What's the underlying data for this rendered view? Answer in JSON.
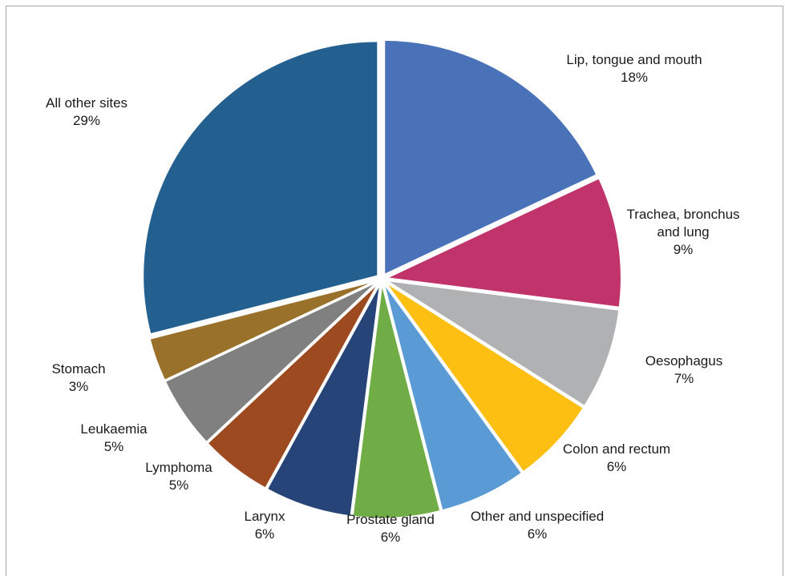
{
  "chart_data": {
    "type": "pie",
    "title": "",
    "slices": [
      {
        "name": "Lip, tongue and mouth",
        "value": 18,
        "label": "18%",
        "color": "#4a72b8"
      },
      {
        "name": "Trachea, bronchus and lung",
        "value": 9,
        "label": "9%",
        "color": "#c0336b"
      },
      {
        "name": "Oesophagus",
        "value": 7,
        "label": "7%",
        "color": "#b0b1b3"
      },
      {
        "name": "Colon and rectum",
        "value": 6,
        "label": "6%",
        "color": "#fdbf12"
      },
      {
        "name": "Other and unspecified",
        "value": 6,
        "label": "6%",
        "color": "#5b9bd5"
      },
      {
        "name": "Prostate gland",
        "value": 6,
        "label": "6%",
        "color": "#71ad47"
      },
      {
        "name": "Larynx",
        "value": 6,
        "label": "6%",
        "color": "#264478"
      },
      {
        "name": "Lymphoma",
        "value": 5,
        "label": "5%",
        "color": "#9e4a21"
      },
      {
        "name": "Leukaemia",
        "value": 5,
        "label": "5%",
        "color": "#808080"
      },
      {
        "name": "Stomach",
        "value": 3,
        "label": "3%",
        "color": "#9a712b"
      },
      {
        "name": "All other sites",
        "value": 29,
        "label": "29%",
        "color": "#24608f"
      }
    ]
  }
}
